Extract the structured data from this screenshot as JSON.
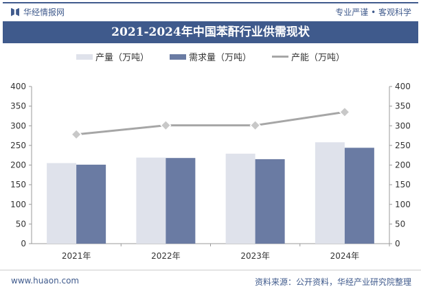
{
  "header": {
    "brand": "华经情报网",
    "slogan": "专业严谨 • 客观科学",
    "title": "2021-2024年中国苯酐行业供需现状"
  },
  "footer": {
    "url": "www.huaon.com",
    "source": "资料来源：公开资料，华经产业研究院整理"
  },
  "colors": {
    "production": "#dfe2eb",
    "demand": "#6a7ba3",
    "capacity": "#a6a6a6",
    "brand": "#3f5a8c"
  },
  "chart_data": {
    "type": "bar",
    "title": "2021-2024年中国苯酐行业供需现状",
    "categories": [
      "2021年",
      "2022年",
      "2023年",
      "2024年"
    ],
    "series": [
      {
        "name": "产量（万吨）",
        "type": "bar",
        "axis": "left",
        "values": [
          205,
          219,
          229,
          258
        ]
      },
      {
        "name": "需求量（万吨）",
        "type": "bar",
        "axis": "left",
        "values": [
          201,
          218,
          215,
          244
        ]
      },
      {
        "name": "产能（万吨）",
        "type": "line",
        "axis": "right",
        "values": [
          278,
          301,
          301,
          335
        ]
      }
    ],
    "ylim": [
      0,
      400
    ],
    "y2lim": [
      0,
      400
    ],
    "yticks": [
      0,
      50,
      100,
      150,
      200,
      250,
      300,
      350,
      400
    ],
    "legend": "top",
    "grid": false
  }
}
